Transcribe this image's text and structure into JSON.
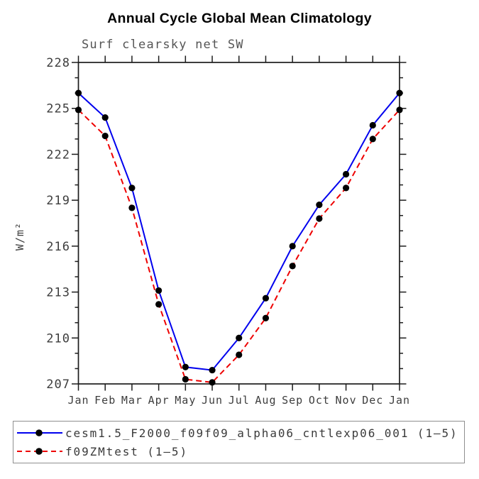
{
  "chart_data": {
    "type": "line",
    "title": "Annual Cycle Global Mean Climatology",
    "subtitle": "Surf clearsky net SW",
    "xlabel": "",
    "ylabel": "W/m²",
    "categories": [
      "Jan",
      "Feb",
      "Mar",
      "Apr",
      "May",
      "Jun",
      "Jul",
      "Aug",
      "Sep",
      "Oct",
      "Nov",
      "Dec",
      "Jan"
    ],
    "ylim": [
      207,
      228
    ],
    "yticks": [
      207,
      210,
      213,
      216,
      219,
      222,
      225,
      228
    ],
    "minor_tick_step": 1,
    "grid": false,
    "ticks_direction": "out",
    "marker": {
      "shape": "circle",
      "color": "#000000"
    },
    "series": [
      {
        "name": "cesm1.5_F2000_f09f09_alpha06_cntlexp06_001 (1–5)",
        "color": "#0000ee",
        "line_style": "solid",
        "values": [
          226.0,
          224.4,
          219.8,
          213.1,
          208.1,
          207.9,
          210.0,
          212.6,
          216.0,
          218.7,
          220.7,
          223.9,
          226.0
        ]
      },
      {
        "name": "f09ZMtest (1–5)",
        "color": "#ee0000",
        "line_style": "dashed",
        "values": [
          224.9,
          223.2,
          218.5,
          212.2,
          207.3,
          207.1,
          208.9,
          211.3,
          214.7,
          217.8,
          219.8,
          223.0,
          224.9
        ]
      }
    ],
    "legend_position": "bottom-left"
  }
}
